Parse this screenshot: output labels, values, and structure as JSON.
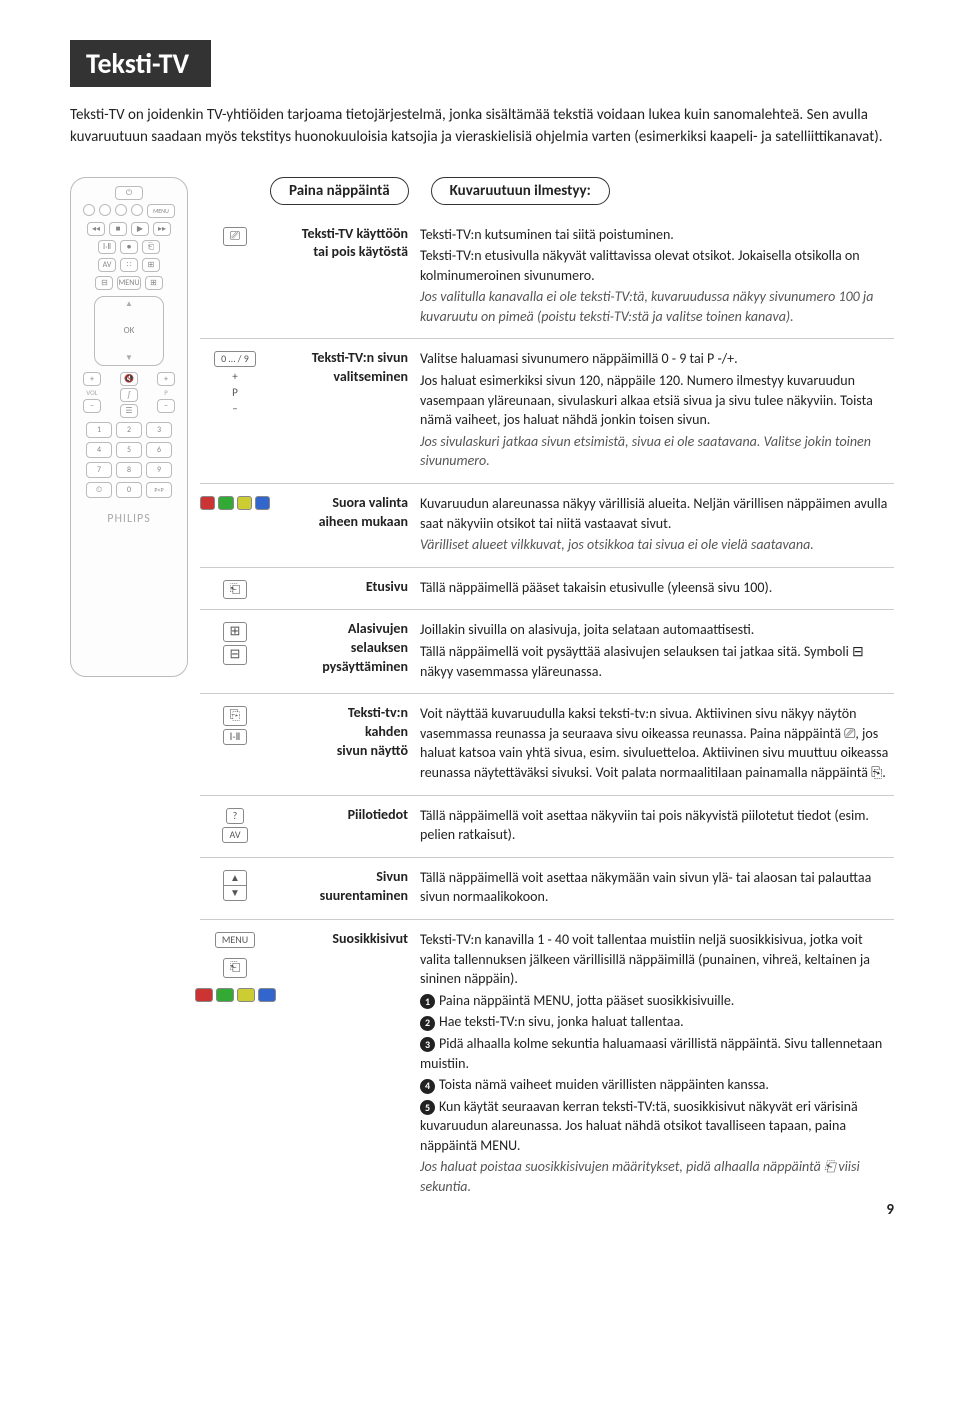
{
  "title": "Teksti-TV",
  "intro": "Teksti-TV on joidenkin TV-yhtiöiden tarjoama tietojärjestelmä, jonka sisältämää tekstiä voidaan lukea kuin sanomalehteä. Sen avulla kuvaruutuun saadaan myös tekstitys huonokuuloisia katsojia ja vieraskielisiä ohjelmia varten (esimerkiksi kaapeli- ja satelliittikanavat).",
  "header": {
    "press": "Paina näppäintä",
    "result": "Kuvaruutuun ilmestyy:"
  },
  "remote_brand": "PHILIPS",
  "rows": {
    "r1": {
      "btn": "⎚",
      "label_l1": "Teksti-TV käyttöön",
      "label_l2": "tai pois käytöstä",
      "desc_l1": "Teksti-TV:n kutsuminen tai siitä poistuminen.",
      "desc_l2": "Teksti-TV:n etusivulla näkyvät valittavissa olevat otsikot. Jokaisella otsikolla on kolminumeroinen sivunumero.",
      "desc_italic": "Jos valitulla kanavalla ei ole teksti-TV:tä, kuvaruudussa näkyy sivunumero 100 ja kuvaruutu on pimeä (poistu teksti-TV:stä ja valitse toinen kanava)."
    },
    "r2": {
      "btn_l1": "0 … / 9",
      "btn_l2": "+",
      "btn_l3": "P",
      "btn_l4": "–",
      "label_l1": "Teksti-TV:n sivun",
      "label_l2": "valitseminen",
      "desc_l1": "Valitse haluamasi sivunumero näppäimillä 0 - 9 tai P -/+.",
      "desc_l2": "Jos haluat esimerkiksi sivun 120, näppäile 120. Numero ilmestyy kuvaruudun vasempaan yläreunaan, sivulaskuri alkaa etsiä sivua ja sivu tulee näkyviin. Toista nämä vaiheet, jos haluat nähdä jonkin toisen sivun.",
      "desc_italic": "Jos sivulaskuri jatkaa sivun etsimistä, sivua ei ole saatavana. Valitse jokin toinen sivunumero."
    },
    "r3": {
      "label_l1": "Suora valinta",
      "label_l2": "aiheen mukaan",
      "desc_l1": "Kuvaruudun alareunassa näkyy värillisiä alueita. Neljän värillisen näppäimen avulla saat näkyviin otsikot tai niitä vastaavat sivut.",
      "desc_italic": "Värilliset alueet vilkkuvat, jos otsikkoa tai sivua ei ole vielä saatavana."
    },
    "r4": {
      "btn": "⎗",
      "label": "Etusivu",
      "desc": "Tällä näppäimellä pääset takaisin etusivulle (yleensä sivu 100)."
    },
    "r5": {
      "btn1": "⊞",
      "btn2": "⊟",
      "label_l1": "Alasivujen",
      "label_l2": "selauksen",
      "label_l3": "pysäyttäminen",
      "desc_l1": "Joillakin sivuilla on alasivuja, joita selataan automaattisesti.",
      "desc_l2": "Tällä näppäimellä voit pysäyttää alasivujen selauksen tai jatkaa sitä. Symboli ⊟ näkyy vasemmassa yläreunassa."
    },
    "r6": {
      "btn1": "⎘",
      "btn2": "Ⅰ-Ⅱ",
      "label_l1": "Teksti-tv:n",
      "label_l2": "kahden",
      "label_l3": "sivun näyttö",
      "desc": "Voit näyttää kuvaruudulla kaksi teksti-tv:n sivua. Aktiivinen sivu näkyy näytön vasemmassa reunassa ja seuraava sivu oikeassa reunassa. Paina näppäintä ⎚, jos haluat katsoa vain yhtä sivua, esim. sivuluetteloa. Aktiivinen sivu muuttuu oikeassa reunassa näytettäväksi sivuksi. Voit palata normaalitilaan painamalla näppäintä ⎘."
    },
    "r7": {
      "btn1": "?",
      "btn2": "AV",
      "label": "Piilotiedot",
      "desc": "Tällä näppäimellä voit asettaa näkyviin tai pois näkyvistä piilotetut tiedot (esim. pelien ratkaisut)."
    },
    "r8": {
      "btn1": "▲",
      "btn2": "▼",
      "label_l1": "Sivun",
      "label_l2": "suurentaminen",
      "desc": "Tällä näppäimellä voit asettaa näkymään vain sivun ylä- tai alaosan tai palauttaa sivun normaalikokoon."
    },
    "r9": {
      "btn1": "MENU",
      "btn2": "⎗",
      "label": "Suosikkisivut",
      "desc_l1": "Teksti-TV:n kanavilla 1 - 40 voit tallentaa muistiin neljä suosikkisivua, jotka voit valita tallennuksen jälkeen värillisillä näppäimillä (punainen, vihreä, keltainen ja sininen näppäin).",
      "step1": "Paina näppäintä MENU, jotta pääset suosikkisivuille.",
      "step2": "Hae teksti-TV:n sivu, jonka haluat tallentaa.",
      "step3": "Pidä alhaalla kolme sekuntia haluamaasi värillistä näppäintä. Sivu tallennetaan muistiin.",
      "step4": "Toista nämä vaiheet muiden värillisten näppäinten kanssa.",
      "step5": "Kun käytät seuraavan kerran teksti-TV:tä, suosikkisivut näkyvät eri värisinä kuvaruudun alareunassa. Jos haluat nähdä otsikot tavalliseen tapaan, paina näppäintä MENU.",
      "desc_italic": "Jos haluat poistaa suosikkisivujen määritykset, pidä alhaalla näppäintä ⎗ viisi sekuntia."
    }
  },
  "colors": {
    "red": "#c33",
    "green": "#3a3",
    "yellow": "#cc3",
    "blue": "#36c"
  },
  "page_number": "9"
}
